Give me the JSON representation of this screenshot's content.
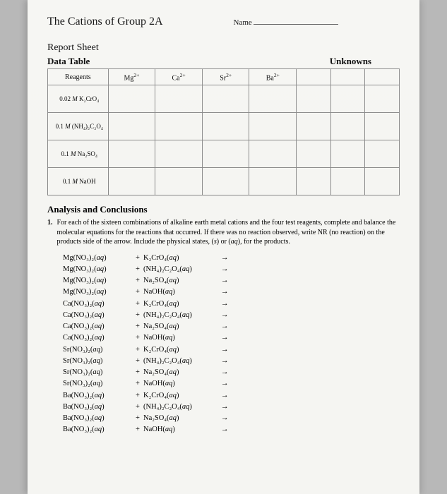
{
  "header": {
    "title": "The Cations of Group 2A",
    "name_label": "Name"
  },
  "section": {
    "report_sheet": "Report Sheet",
    "data_table": "Data Table",
    "unknowns": "Unknowns",
    "analysis_head": "Analysis and Conclusions"
  },
  "table": {
    "columns": [
      "Reagents",
      "Mg²⁺",
      "Ca²⁺",
      "Sr²⁺",
      "Ba²⁺",
      "",
      "",
      ""
    ],
    "rows": [
      "0.02 M K₂CrO₄",
      "0.1 M (NH₄)₂C₂O₄",
      "0.1 M Na₂SO₄",
      "0.1 M NaOH"
    ]
  },
  "question": {
    "num": "1.",
    "text": "For each of the sixteen combinations of alkaline earth metal cations and the four test reagents, complete and balance the molecular equations for the reactions that occurred. If there was no reaction observed, write NR (no reaction) on the products side of the arrow. Include the physical states, (s) or (aq), for the products."
  },
  "equations": [
    {
      "l": "Mg(NO₃)₂(aq)",
      "r": "K₂CrO₄(aq)"
    },
    {
      "l": "Mg(NO₃)₂(aq)",
      "r": "(NH₄)₂C₂O₄(aq)"
    },
    {
      "l": "Mg(NO₃)₂(aq)",
      "r": "Na₂SO₄(aq)"
    },
    {
      "l": "Mg(NO₃)₂(aq)",
      "r": "NaOH(aq)"
    },
    {
      "l": "Ca(NO₃)₂(aq)",
      "r": "K₂CrO₄(aq)"
    },
    {
      "l": "Ca(NO₃)₂(aq)",
      "r": "(NH₄)₂C₂O₄(aq)"
    },
    {
      "l": "Ca(NO₃)₂(aq)",
      "r": "Na₂SO₄(aq)"
    },
    {
      "l": "Ca(NO₃)₂(aq)",
      "r": "NaOH(aq)"
    },
    {
      "l": "Sr(NO₃)₂(aq)",
      "r": "K₂CrO₄(aq)"
    },
    {
      "l": "Sr(NO₃)₂(aq)",
      "r": "(NH₄)₂C₂O₄(aq)"
    },
    {
      "l": "Sr(NO₃)₂(aq)",
      "r": "Na₂SO₄(aq)"
    },
    {
      "l": "Sr(NO₃)₂(aq)",
      "r": "NaOH(aq)"
    },
    {
      "l": "Ba(NO₃)₂(aq)",
      "r": "K₂CrO₄(aq)"
    },
    {
      "l": "Ba(NO₃)₂(aq)",
      "r": "(NH₄)₂C₂O₄(aq)"
    },
    {
      "l": "Ba(NO₃)₂(aq)",
      "r": "Na₂SO₄(aq)"
    },
    {
      "l": "Ba(NO₃)₂(aq)",
      "r": "NaOH(aq)"
    }
  ],
  "style": {
    "paper_bg": "#f5f5f2",
    "page_bg": "#b8b8b8",
    "border": "#888888",
    "text": "#222222"
  }
}
